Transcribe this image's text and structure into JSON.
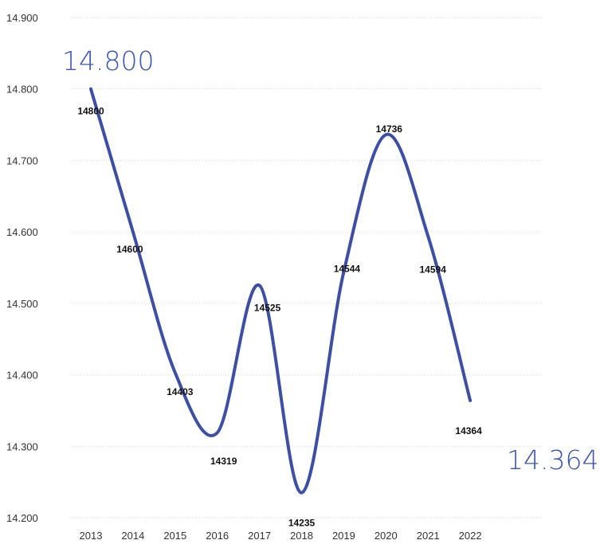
{
  "chart_data": {
    "type": "line",
    "categories": [
      "2013",
      "2014",
      "2015",
      "2016",
      "2017",
      "2018",
      "2019",
      "2020",
      "2021",
      "2022"
    ],
    "series": [
      {
        "values": [
          14800,
          14600,
          14403,
          14319,
          14525,
          14235,
          14544,
          14736,
          14594,
          14364
        ]
      }
    ],
    "data_labels": [
      "14800",
      "14600",
      "14403",
      "14319",
      "14525",
      "14235",
      "14544",
      "14736",
      "14594",
      "14364"
    ],
    "y_ticks": [
      14200,
      14300,
      14400,
      14500,
      14600,
      14700,
      14800,
      14900
    ],
    "y_tick_labels": [
      "14.200",
      "14.300",
      "14.400",
      "14.500",
      "14.600",
      "14.700",
      "14.800",
      "14.900"
    ],
    "ylim": [
      14200,
      14900
    ],
    "grid": true,
    "legend": "none",
    "line_color": "#3b4fa8",
    "callouts": [
      {
        "text": "14.800",
        "category": "2013"
      },
      {
        "text": "14.364",
        "category": "2022"
      }
    ],
    "callout_color": "#3b55b8"
  }
}
